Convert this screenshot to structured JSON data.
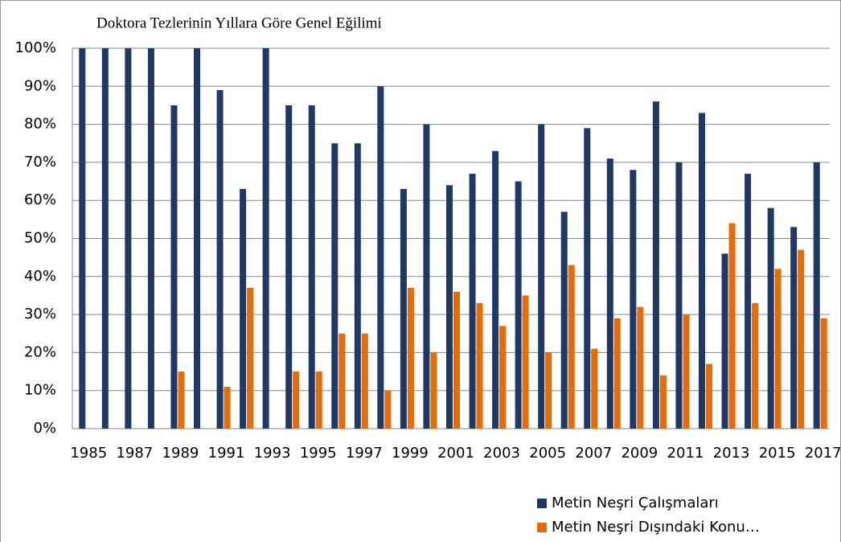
{
  "chart_data": {
    "type": "bar",
    "title": "Doktora Tezlerinin Yıllara Göre Genel Eğilimi",
    "categories": [
      "1985",
      null,
      "1987",
      null,
      "1989",
      null,
      "1991",
      null,
      "1993",
      null,
      "1995",
      null,
      "1997",
      null,
      "1999",
      null,
      "2001",
      null,
      "2003",
      null,
      "2005",
      null,
      "2007",
      null,
      "2009",
      null,
      "2011",
      null,
      "2013",
      null,
      "2015",
      null,
      "2017"
    ],
    "series": [
      {
        "name": "Metin Neşri Çalışmaları",
        "color": "#1f3864",
        "values": [
          100,
          100,
          100,
          100,
          85,
          100,
          89,
          63,
          100,
          85,
          85,
          75,
          75,
          90,
          63,
          80,
          64,
          67,
          73,
          65,
          80,
          57,
          79,
          71,
          68,
          86,
          70,
          83,
          46,
          67,
          58,
          53,
          70
        ]
      },
      {
        "name": "Metin Neşri Dışındaki Konu…",
        "color": "#e46c0a",
        "values": [
          0,
          0,
          0,
          0,
          15,
          0,
          11,
          37,
          0,
          15,
          15,
          25,
          25,
          10,
          37,
          20,
          36,
          33,
          27,
          35,
          20,
          43,
          21,
          29,
          32,
          14,
          30,
          17,
          54,
          33,
          42,
          47,
          29
        ]
      }
    ],
    "ylim": [
      0,
      100
    ],
    "yticks": [
      {
        "value": 0,
        "label": "0%"
      },
      {
        "value": 10,
        "label": "10%"
      },
      {
        "value": 20,
        "label": "20%"
      },
      {
        "value": 30,
        "label": "30%"
      },
      {
        "value": 40,
        "label": "40%"
      },
      {
        "value": 50,
        "label": "50%"
      },
      {
        "value": 60,
        "label": "60%"
      },
      {
        "value": 70,
        "label": "70%"
      },
      {
        "value": 80,
        "label": "80%"
      },
      {
        "value": 90,
        "label": "90%"
      },
      {
        "value": 100,
        "label": "100%"
      }
    ],
    "grid": true,
    "legend": "bottom-right"
  }
}
